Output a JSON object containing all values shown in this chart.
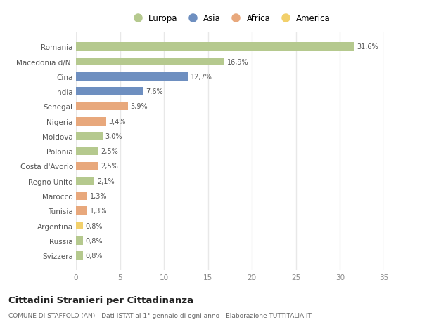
{
  "countries": [
    "Romania",
    "Macedonia d/N.",
    "Cina",
    "India",
    "Senegal",
    "Nigeria",
    "Moldova",
    "Polonia",
    "Costa d'Avorio",
    "Regno Unito",
    "Marocco",
    "Tunisia",
    "Argentina",
    "Russia",
    "Svizzera"
  ],
  "values": [
    31.6,
    16.9,
    12.7,
    7.6,
    5.9,
    3.4,
    3.0,
    2.5,
    2.5,
    2.1,
    1.3,
    1.3,
    0.8,
    0.8,
    0.8
  ],
  "labels": [
    "31,6%",
    "16,9%",
    "12,7%",
    "7,6%",
    "5,9%",
    "3,4%",
    "3,0%",
    "2,5%",
    "2,5%",
    "2,1%",
    "1,3%",
    "1,3%",
    "0,8%",
    "0,8%",
    "0,8%"
  ],
  "colors": [
    "#b5c98e",
    "#b5c98e",
    "#6e8fc0",
    "#6e8fc0",
    "#e8a87c",
    "#e8a87c",
    "#b5c98e",
    "#b5c98e",
    "#e8a87c",
    "#b5c98e",
    "#e8a87c",
    "#e8a87c",
    "#f2d06b",
    "#b5c98e",
    "#b5c98e"
  ],
  "legend_labels": [
    "Europa",
    "Asia",
    "Africa",
    "America"
  ],
  "legend_colors": [
    "#b5c98e",
    "#6e8fc0",
    "#e8a87c",
    "#f2d06b"
  ],
  "title": "Cittadini Stranieri per Cittadinanza",
  "subtitle": "COMUNE DI STAFFOLO (AN) - Dati ISTAT al 1° gennaio di ogni anno - Elaborazione TUTTITALIA.IT",
  "xlim": [
    0,
    35
  ],
  "xticks": [
    0,
    5,
    10,
    15,
    20,
    25,
    30,
    35
  ],
  "bg_color": "#ffffff",
  "grid_color": "#e8e8e8",
  "bar_height": 0.55
}
